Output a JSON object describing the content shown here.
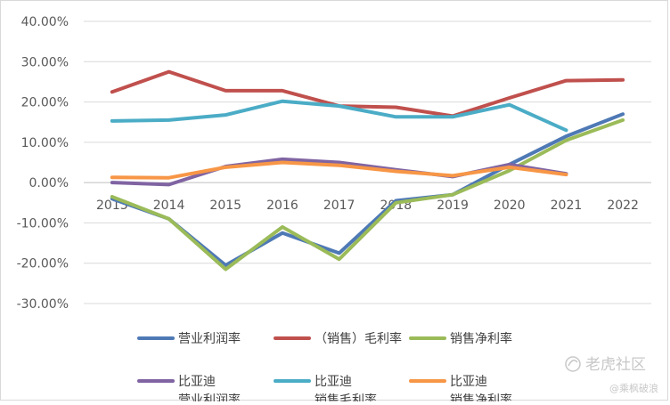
{
  "chart_data": {
    "type": "line",
    "categories": [
      "2013",
      "2014",
      "2015",
      "2016",
      "2017",
      "2018",
      "2019",
      "2020",
      "2021",
      "2022"
    ],
    "y_ticks": [
      "40.00%",
      "30.00%",
      "20.00%",
      "10.00%",
      "0.00%",
      "-10.00%",
      "-20.00%",
      "-30.00%"
    ],
    "ylim": [
      -30,
      40
    ],
    "legend_position": "bottom",
    "series": [
      {
        "name": "营业利润率",
        "name_lines": [
          "营业利润率"
        ],
        "color": "#4e79b5",
        "values": [
          -4.0,
          -9.0,
          -20.5,
          -12.5,
          -17.5,
          -4.5,
          -3.0,
          4.5,
          11.5,
          17.0
        ]
      },
      {
        "name": "（销售）毛利率",
        "name_lines": [
          "（销售）毛利率"
        ],
        "color": "#c0504d",
        "values": [
          22.5,
          27.5,
          22.8,
          22.8,
          19.0,
          18.7,
          16.5,
          21.0,
          25.3,
          25.5
        ]
      },
      {
        "name": "销售净利率",
        "name_lines": [
          "销售净利率"
        ],
        "color": "#9bbb59",
        "values": [
          -3.5,
          -9.0,
          -21.5,
          -11.0,
          -19.0,
          -5.0,
          -3.0,
          3.0,
          10.5,
          15.5
        ]
      },
      {
        "name": "比亚迪营业利润率",
        "name_lines": [
          "比亚迪",
          "营业利润率"
        ],
        "color": "#8064a2",
        "values": [
          0.0,
          -0.5,
          4.0,
          5.8,
          5.0,
          3.2,
          1.5,
          4.5,
          2.2,
          null
        ]
      },
      {
        "name": "比亚迪销售毛利率",
        "name_lines": [
          "比亚迪",
          "销售毛利率"
        ],
        "color": "#4bacc6",
        "values": [
          15.3,
          15.5,
          16.8,
          20.2,
          19.0,
          16.3,
          16.3,
          19.3,
          13.0,
          null
        ]
      },
      {
        "name": "比亚迪销售净利率",
        "name_lines": [
          "比亚迪",
          "销售净利率"
        ],
        "color": "#f79646",
        "values": [
          1.3,
          1.2,
          3.8,
          5.0,
          4.3,
          2.8,
          1.7,
          3.8,
          2.0,
          null
        ]
      }
    ]
  },
  "watermark": {
    "brand": "老虎社区",
    "author": "@乘枫破浪"
  }
}
